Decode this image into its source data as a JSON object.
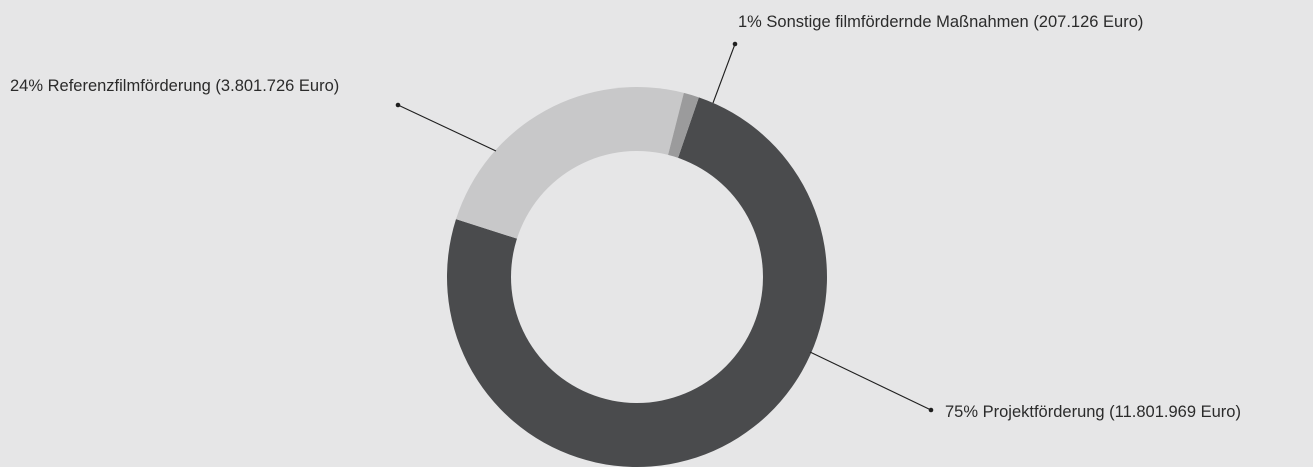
{
  "chart_data": {
    "type": "pie",
    "variant": "donut",
    "title": "",
    "slices": [
      {
        "key": "projekt",
        "percent": 75,
        "amount": 11801969,
        "label": "75% Projektförderung (11.801.969 Euro)",
        "color": "#4a4b4d"
      },
      {
        "key": "referenz",
        "percent": 24,
        "amount": 3801726,
        "label": "24% Referenzfilmförderung (3.801.726 Euro)",
        "color": "#c8c8c9"
      },
      {
        "key": "sonstige",
        "percent": 1,
        "amount": 207126,
        "label": "1% Sonstige filmfördernde Maßnahmen (207.126 Euro)",
        "color": "#9b9b9c"
      }
    ],
    "legend": "none"
  }
}
